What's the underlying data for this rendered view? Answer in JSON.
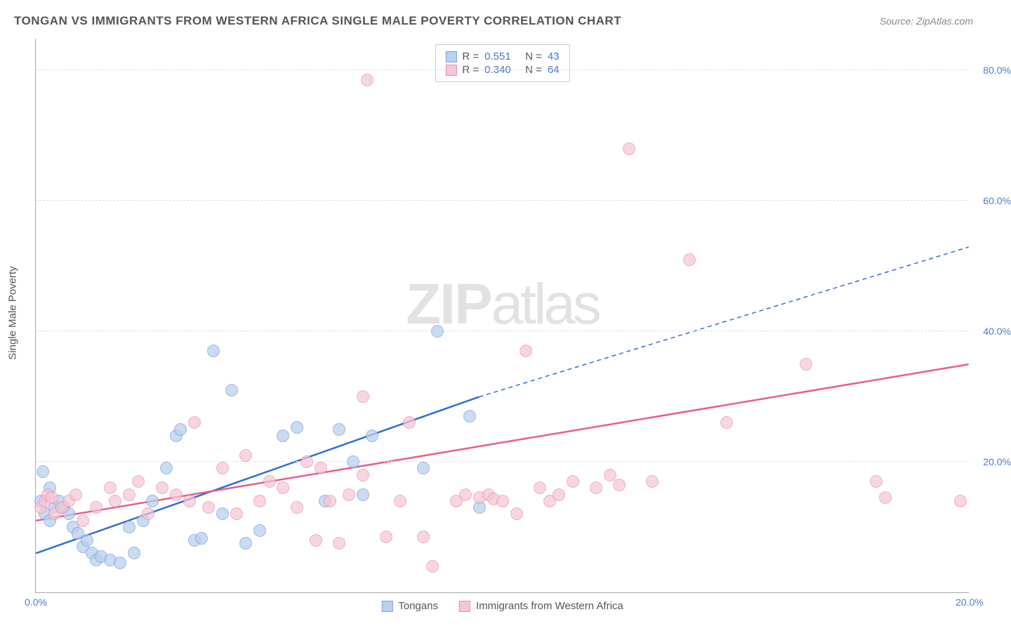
{
  "title": "TONGAN VS IMMIGRANTS FROM WESTERN AFRICA SINGLE MALE POVERTY CORRELATION CHART",
  "source": "Source: ZipAtlas.com",
  "ylabel": "Single Male Poverty",
  "watermark_bold": "ZIP",
  "watermark_rest": "atlas",
  "chart": {
    "type": "scatter",
    "xlim": [
      0,
      20
    ],
    "ylim": [
      0,
      85
    ],
    "xticks": [
      {
        "v": 0,
        "l": "0.0%"
      },
      {
        "v": 20,
        "l": "20.0%"
      }
    ],
    "yticks": [
      {
        "v": 20,
        "l": "20.0%"
      },
      {
        "v": 40,
        "l": "40.0%"
      },
      {
        "v": 60,
        "l": "60.0%"
      },
      {
        "v": 80,
        "l": "80.0%"
      }
    ],
    "grid_color": "#dddddd",
    "background_color": "#ffffff",
    "series": [
      {
        "name": "Tongans",
        "marker_fill": "#b9d0ee",
        "marker_stroke": "#7ba3dd",
        "marker_opacity": 0.75,
        "line_color": "#2e6fd1",
        "line_width": 2.5,
        "r_label": "R =",
        "r_value": "0.551",
        "n_label": "N =",
        "n_value": "43",
        "trend": {
          "x1": 0,
          "y1": 6,
          "x2_solid": 9.5,
          "y2_solid": 30,
          "x2": 20,
          "y2": 53
        },
        "points": [
          [
            0.1,
            14
          ],
          [
            0.2,
            12
          ],
          [
            0.3,
            11
          ],
          [
            0.3,
            16
          ],
          [
            0.15,
            18.5
          ],
          [
            0.4,
            13
          ],
          [
            0.5,
            14
          ],
          [
            0.6,
            13
          ],
          [
            0.7,
            12
          ],
          [
            0.8,
            10
          ],
          [
            0.9,
            9
          ],
          [
            1.0,
            7
          ],
          [
            1.1,
            8
          ],
          [
            1.2,
            6
          ],
          [
            1.3,
            5
          ],
          [
            1.4,
            5.5
          ],
          [
            1.6,
            5
          ],
          [
            1.8,
            4.5
          ],
          [
            2.0,
            10
          ],
          [
            2.1,
            6
          ],
          [
            2.3,
            11
          ],
          [
            2.5,
            14
          ],
          [
            2.8,
            19
          ],
          [
            3.0,
            24
          ],
          [
            3.1,
            25
          ],
          [
            3.4,
            8
          ],
          [
            3.55,
            8.3
          ],
          [
            3.8,
            37
          ],
          [
            4.0,
            12
          ],
          [
            4.2,
            31
          ],
          [
            4.5,
            7.5
          ],
          [
            4.8,
            9.5
          ],
          [
            5.3,
            24
          ],
          [
            5.6,
            25.3
          ],
          [
            6.2,
            14
          ],
          [
            6.5,
            25
          ],
          [
            6.8,
            20
          ],
          [
            7.0,
            15
          ],
          [
            7.2,
            24
          ],
          [
            8.3,
            19
          ],
          [
            8.6,
            40
          ],
          [
            9.5,
            13
          ],
          [
            9.3,
            27
          ]
        ]
      },
      {
        "name": "Immigrants from Western Africa",
        "marker_fill": "#f5c6d4",
        "marker_stroke": "#e890ab",
        "marker_opacity": 0.7,
        "line_color": "#e85d8a",
        "line_width": 2.5,
        "r_label": "R =",
        "r_value": "0.340",
        "n_label": "N =",
        "n_value": "64",
        "trend": {
          "x1": 0,
          "y1": 11,
          "x2_solid": 20,
          "y2_solid": 35,
          "x2": 20,
          "y2": 35
        },
        "points": [
          [
            0.1,
            13
          ],
          [
            0.2,
            14
          ],
          [
            0.25,
            15
          ],
          [
            0.35,
            14.5
          ],
          [
            0.4,
            12
          ],
          [
            0.55,
            13
          ],
          [
            0.7,
            14
          ],
          [
            0.85,
            15
          ],
          [
            1.0,
            11
          ],
          [
            1.3,
            13
          ],
          [
            1.6,
            16
          ],
          [
            1.7,
            14
          ],
          [
            2.0,
            15
          ],
          [
            2.2,
            17
          ],
          [
            2.4,
            12
          ],
          [
            2.7,
            16
          ],
          [
            3.0,
            15
          ],
          [
            3.3,
            14
          ],
          [
            3.4,
            26
          ],
          [
            3.7,
            13
          ],
          [
            4.0,
            19
          ],
          [
            4.3,
            12
          ],
          [
            4.5,
            21
          ],
          [
            4.8,
            14
          ],
          [
            5.0,
            17
          ],
          [
            5.3,
            16
          ],
          [
            5.6,
            13
          ],
          [
            5.8,
            20
          ],
          [
            6.0,
            8
          ],
          [
            6.1,
            19
          ],
          [
            6.3,
            14
          ],
          [
            6.5,
            7.5
          ],
          [
            6.7,
            15
          ],
          [
            7.0,
            30
          ],
          [
            7.0,
            18
          ],
          [
            7.1,
            78.5
          ],
          [
            7.5,
            8.5
          ],
          [
            7.8,
            14
          ],
          [
            8.0,
            26
          ],
          [
            8.3,
            8.5
          ],
          [
            8.5,
            4
          ],
          [
            9.0,
            14
          ],
          [
            9.2,
            15
          ],
          [
            9.5,
            14.5
          ],
          [
            9.7,
            15
          ],
          [
            9.8,
            14.3
          ],
          [
            10.0,
            14
          ],
          [
            10.3,
            12
          ],
          [
            10.5,
            37
          ],
          [
            10.8,
            16
          ],
          [
            11.0,
            14
          ],
          [
            11.2,
            15
          ],
          [
            11.5,
            17
          ],
          [
            12.0,
            16
          ],
          [
            12.3,
            18
          ],
          [
            12.5,
            16.5
          ],
          [
            12.7,
            68
          ],
          [
            13.2,
            17
          ],
          [
            14.0,
            51
          ],
          [
            14.8,
            26
          ],
          [
            16.5,
            35
          ],
          [
            18.0,
            17
          ],
          [
            18.2,
            14.5
          ],
          [
            19.8,
            14
          ]
        ]
      }
    ]
  }
}
